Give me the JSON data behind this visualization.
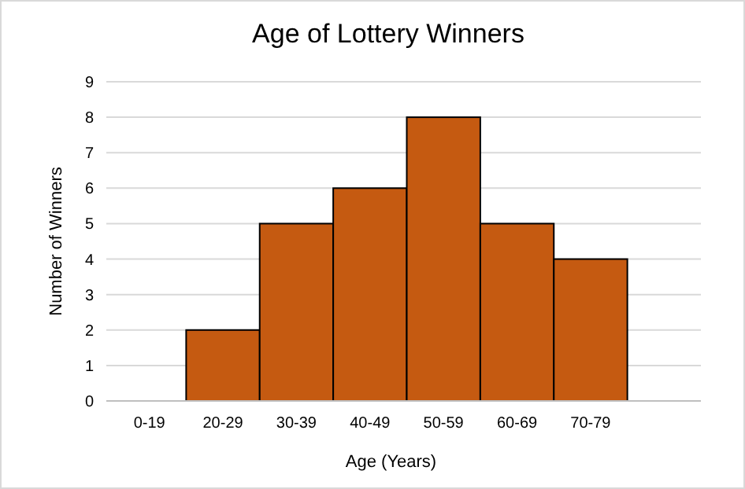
{
  "chart_data": {
    "type": "bar",
    "title": "Age of Lottery Winners",
    "xlabel": "Age (Years)",
    "ylabel": "Number of Winners",
    "categories": [
      "0-19",
      "20-29",
      "30-39",
      "40-49",
      "50-59",
      "60-69",
      "70-79",
      null
    ],
    "values": [
      0,
      2,
      5,
      6,
      8,
      5,
      4,
      null
    ],
    "color": "#c55a11",
    "ylim": [
      0,
      9
    ],
    "yticks": [
      0,
      1,
      2,
      3,
      4,
      5,
      6,
      7,
      8,
      9
    ],
    "grid": "y"
  }
}
